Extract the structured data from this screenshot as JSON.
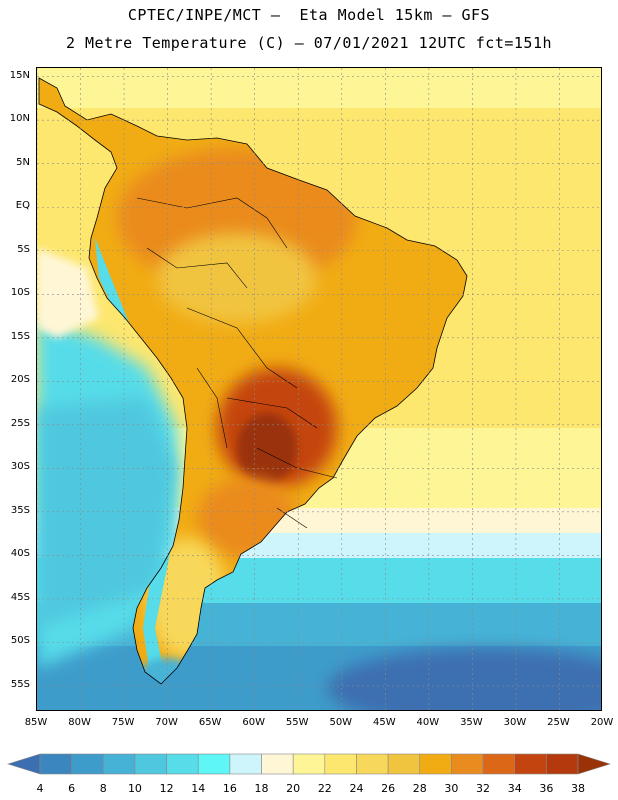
{
  "header": {
    "line1": "CPTEC/INPE/MCT –  Eta Model 15km – GFS",
    "line2": "2 Metre Temperature (C) – 07/01/2021 12UTC fct=151h"
  },
  "map": {
    "lat_labels": [
      "15N",
      "10N",
      "5N",
      "EQ",
      "5S",
      "10S",
      "15S",
      "20S",
      "25S",
      "30S",
      "35S",
      "40S",
      "45S",
      "50S",
      "55S"
    ],
    "lat_values": [
      15,
      10,
      5,
      0,
      -5,
      -10,
      -15,
      -20,
      -25,
      -30,
      -35,
      -40,
      -45,
      -50,
      -55
    ],
    "lon_labels": [
      "85W",
      "80W",
      "75W",
      "70W",
      "65W",
      "60W",
      "55W",
      "50W",
      "45W",
      "40W",
      "35W",
      "30W",
      "25W",
      "20W"
    ],
    "lon_values": [
      -85,
      -80,
      -75,
      -70,
      -65,
      -60,
      -55,
      -50,
      -45,
      -40,
      -35,
      -30,
      -25,
      -20
    ],
    "extent": {
      "lon_min": -85,
      "lon_max": -20,
      "lat_min": -58,
      "lat_max": 16
    }
  },
  "colorbar": {
    "ticks": [
      "4",
      "6",
      "8",
      "10",
      "12",
      "14",
      "16",
      "18",
      "20",
      "22",
      "24",
      "26",
      "28",
      "30",
      "32",
      "34",
      "36",
      "38"
    ],
    "colors": [
      "#3c6fb0",
      "#3c86c0",
      "#3e9ccb",
      "#46b3d6",
      "#4fc8df",
      "#57dce9",
      "#5ef6f6",
      "#cdf5fb",
      "#fff6d6",
      "#fef596",
      "#fde76f",
      "#f8d85a",
      "#f1c440",
      "#f1ac14",
      "#ea8b1f",
      "#dc6716",
      "#c44410",
      "#b43a0e",
      "#9a3208"
    ]
  }
}
